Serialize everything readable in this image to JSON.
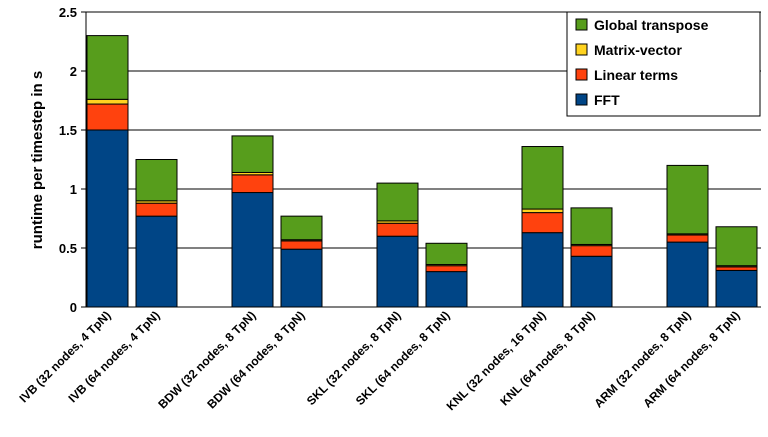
{
  "chart_data": {
    "type": "bar",
    "stacked": true,
    "title": "",
    "xlabel": "",
    "ylabel": "runtime per timestep in s",
    "ylim": [
      0,
      2.5
    ],
    "yticks": [
      "0",
      "0.5",
      "1",
      "1.5",
      "2",
      "2.5"
    ],
    "grid": true,
    "legend_position": "top-right",
    "categories": [
      "IVB (32 nodes, 4 TpN)",
      "IVB (64 nodes, 4 TpN)",
      "BDW (32 nodes, 8 TpN)",
      "BDW (64 nodes, 8 TpN)",
      "SKL (32 nodes, 8 TpN)",
      "SKL (64 nodes, 8 TpN)",
      "KNL (32 nodes, 16 TpN)",
      "KNL (64 nodes, 8 TpN)",
      "ARM (32 nodes, 8 TpN)",
      "ARM (64 nodes, 8 TpN)"
    ],
    "series": [
      {
        "name": "FFT",
        "color": "#004586",
        "values": [
          1.5,
          0.77,
          0.97,
          0.49,
          0.6,
          0.3,
          0.63,
          0.43,
          0.55,
          0.31
        ]
      },
      {
        "name": "Linear terms",
        "color": "#ff420e",
        "values": [
          0.22,
          0.11,
          0.15,
          0.07,
          0.11,
          0.05,
          0.17,
          0.09,
          0.06,
          0.03
        ]
      },
      {
        "name": "Matrix-vector",
        "color": "#ffd320",
        "values": [
          0.04,
          0.02,
          0.02,
          0.01,
          0.02,
          0.01,
          0.03,
          0.01,
          0.01,
          0.01
        ]
      },
      {
        "name": "Global transpose",
        "color": "#579d1c",
        "values": [
          0.54,
          0.35,
          0.31,
          0.2,
          0.32,
          0.18,
          0.53,
          0.31,
          0.58,
          0.33
        ]
      }
    ]
  }
}
